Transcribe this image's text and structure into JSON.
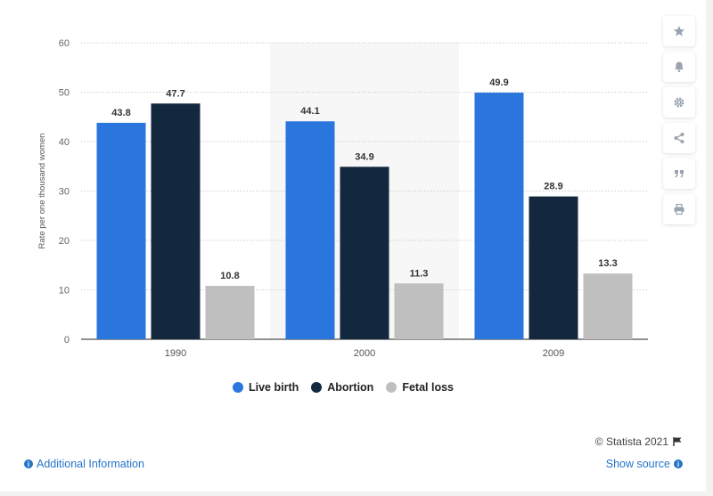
{
  "chart_data": {
    "type": "bar",
    "categories": [
      "1990",
      "2000",
      "2009"
    ],
    "series": [
      {
        "name": "Live birth",
        "color": "#2a76dd",
        "values": [
          43.8,
          44.1,
          49.9
        ]
      },
      {
        "name": "Abortion",
        "color": "#13283f",
        "values": [
          47.7,
          34.9,
          28.9
        ]
      },
      {
        "name": "Fetal loss",
        "color": "#bfbfbf",
        "values": [
          10.8,
          11.3,
          13.3
        ]
      }
    ],
    "ylabel": "Rate per one thousand women",
    "ylim": [
      0,
      60
    ],
    "yticks": [
      0,
      10,
      20,
      30,
      40,
      50,
      60
    ],
    "grid": true,
    "legend_position": "bottom"
  },
  "toolbar": {
    "icons": [
      "star-icon",
      "bell-icon",
      "gear-icon",
      "share-icon",
      "quote-icon",
      "print-icon"
    ]
  },
  "footer": {
    "credit": "© Statista 2021",
    "additional_info": "Additional Information",
    "show_source": "Show source"
  }
}
